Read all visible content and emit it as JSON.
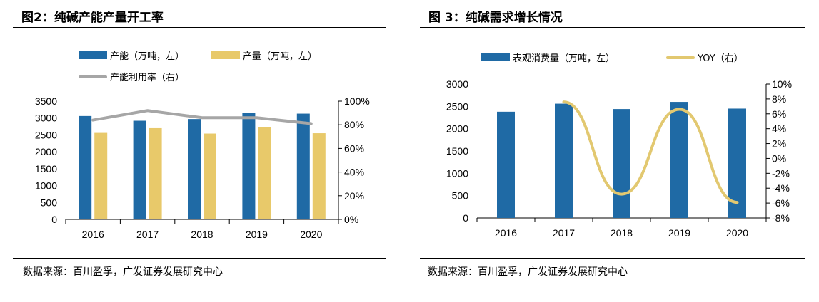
{
  "colors": {
    "blue": "#1f6aa5",
    "gold": "#e8c96a",
    "gray": "#a6a6a6",
    "yoy": "#e2c870"
  },
  "figure1": {
    "title": "图2：纯碱产能产量开工率",
    "source": "数据来源：百川盈孚，广发证券发展研究中心",
    "legend": [
      "产能（万吨，左）",
      "产量（万吨，左）",
      "产能利用率（右）"
    ]
  },
  "figure2": {
    "title": "图 3：纯碱需求增长情况",
    "source": "数据来源：百川盈孚，广发证券发展研究中心",
    "legend": [
      "表观消费量（万吨，左）",
      "YOY（右）"
    ]
  },
  "chart_data": [
    {
      "type": "bar",
      "title": "图2：纯碱产能产量开工率",
      "categories": [
        "2016",
        "2017",
        "2018",
        "2019",
        "2020"
      ],
      "series": [
        {
          "name": "产能（万吨，左）",
          "type": "bar",
          "axis": "left",
          "values": [
            3060,
            2920,
            2970,
            3160,
            3130
          ]
        },
        {
          "name": "产量（万吨，左）",
          "type": "bar",
          "axis": "left",
          "values": [
            2560,
            2700,
            2540,
            2730,
            2550
          ]
        },
        {
          "name": "产能利用率（右）",
          "type": "line",
          "axis": "right",
          "values": [
            84,
            92,
            86,
            86,
            81
          ]
        }
      ],
      "ylim": [
        0,
        3500
      ],
      "y_ticks": [
        "0",
        "500",
        "1000",
        "1500",
        "2000",
        "2500",
        "3000",
        "3500"
      ],
      "y2lim": [
        0,
        100
      ],
      "y2_ticks": [
        "0%",
        "20%",
        "40%",
        "60%",
        "80%",
        "100%"
      ],
      "legend_position": "top",
      "grid": false
    },
    {
      "type": "bar",
      "title": "图 3：纯碱需求增长情况",
      "categories": [
        "2016",
        "2017",
        "2018",
        "2019",
        "2020"
      ],
      "series": [
        {
          "name": "表观消费量（万吨，左）",
          "type": "bar",
          "axis": "left",
          "values": [
            2380,
            2560,
            2440,
            2600,
            2450
          ]
        },
        {
          "name": "YOY（右）",
          "type": "line",
          "axis": "right",
          "smooth": true,
          "x": [
            "2017",
            "2018",
            "2019",
            "2020"
          ],
          "values": [
            7.6,
            -4.8,
            6.6,
            -5.9
          ]
        }
      ],
      "ylim": [
        0,
        3000
      ],
      "y_ticks": [
        "0",
        "500",
        "1000",
        "1500",
        "2000",
        "2500",
        "3000"
      ],
      "y2lim": [
        -8,
        10
      ],
      "y2_ticks": [
        "-8%",
        "-6%",
        "-4%",
        "-2%",
        "0%",
        "2%",
        "4%",
        "6%",
        "8%",
        "10%"
      ],
      "legend_position": "top",
      "grid": false
    }
  ]
}
